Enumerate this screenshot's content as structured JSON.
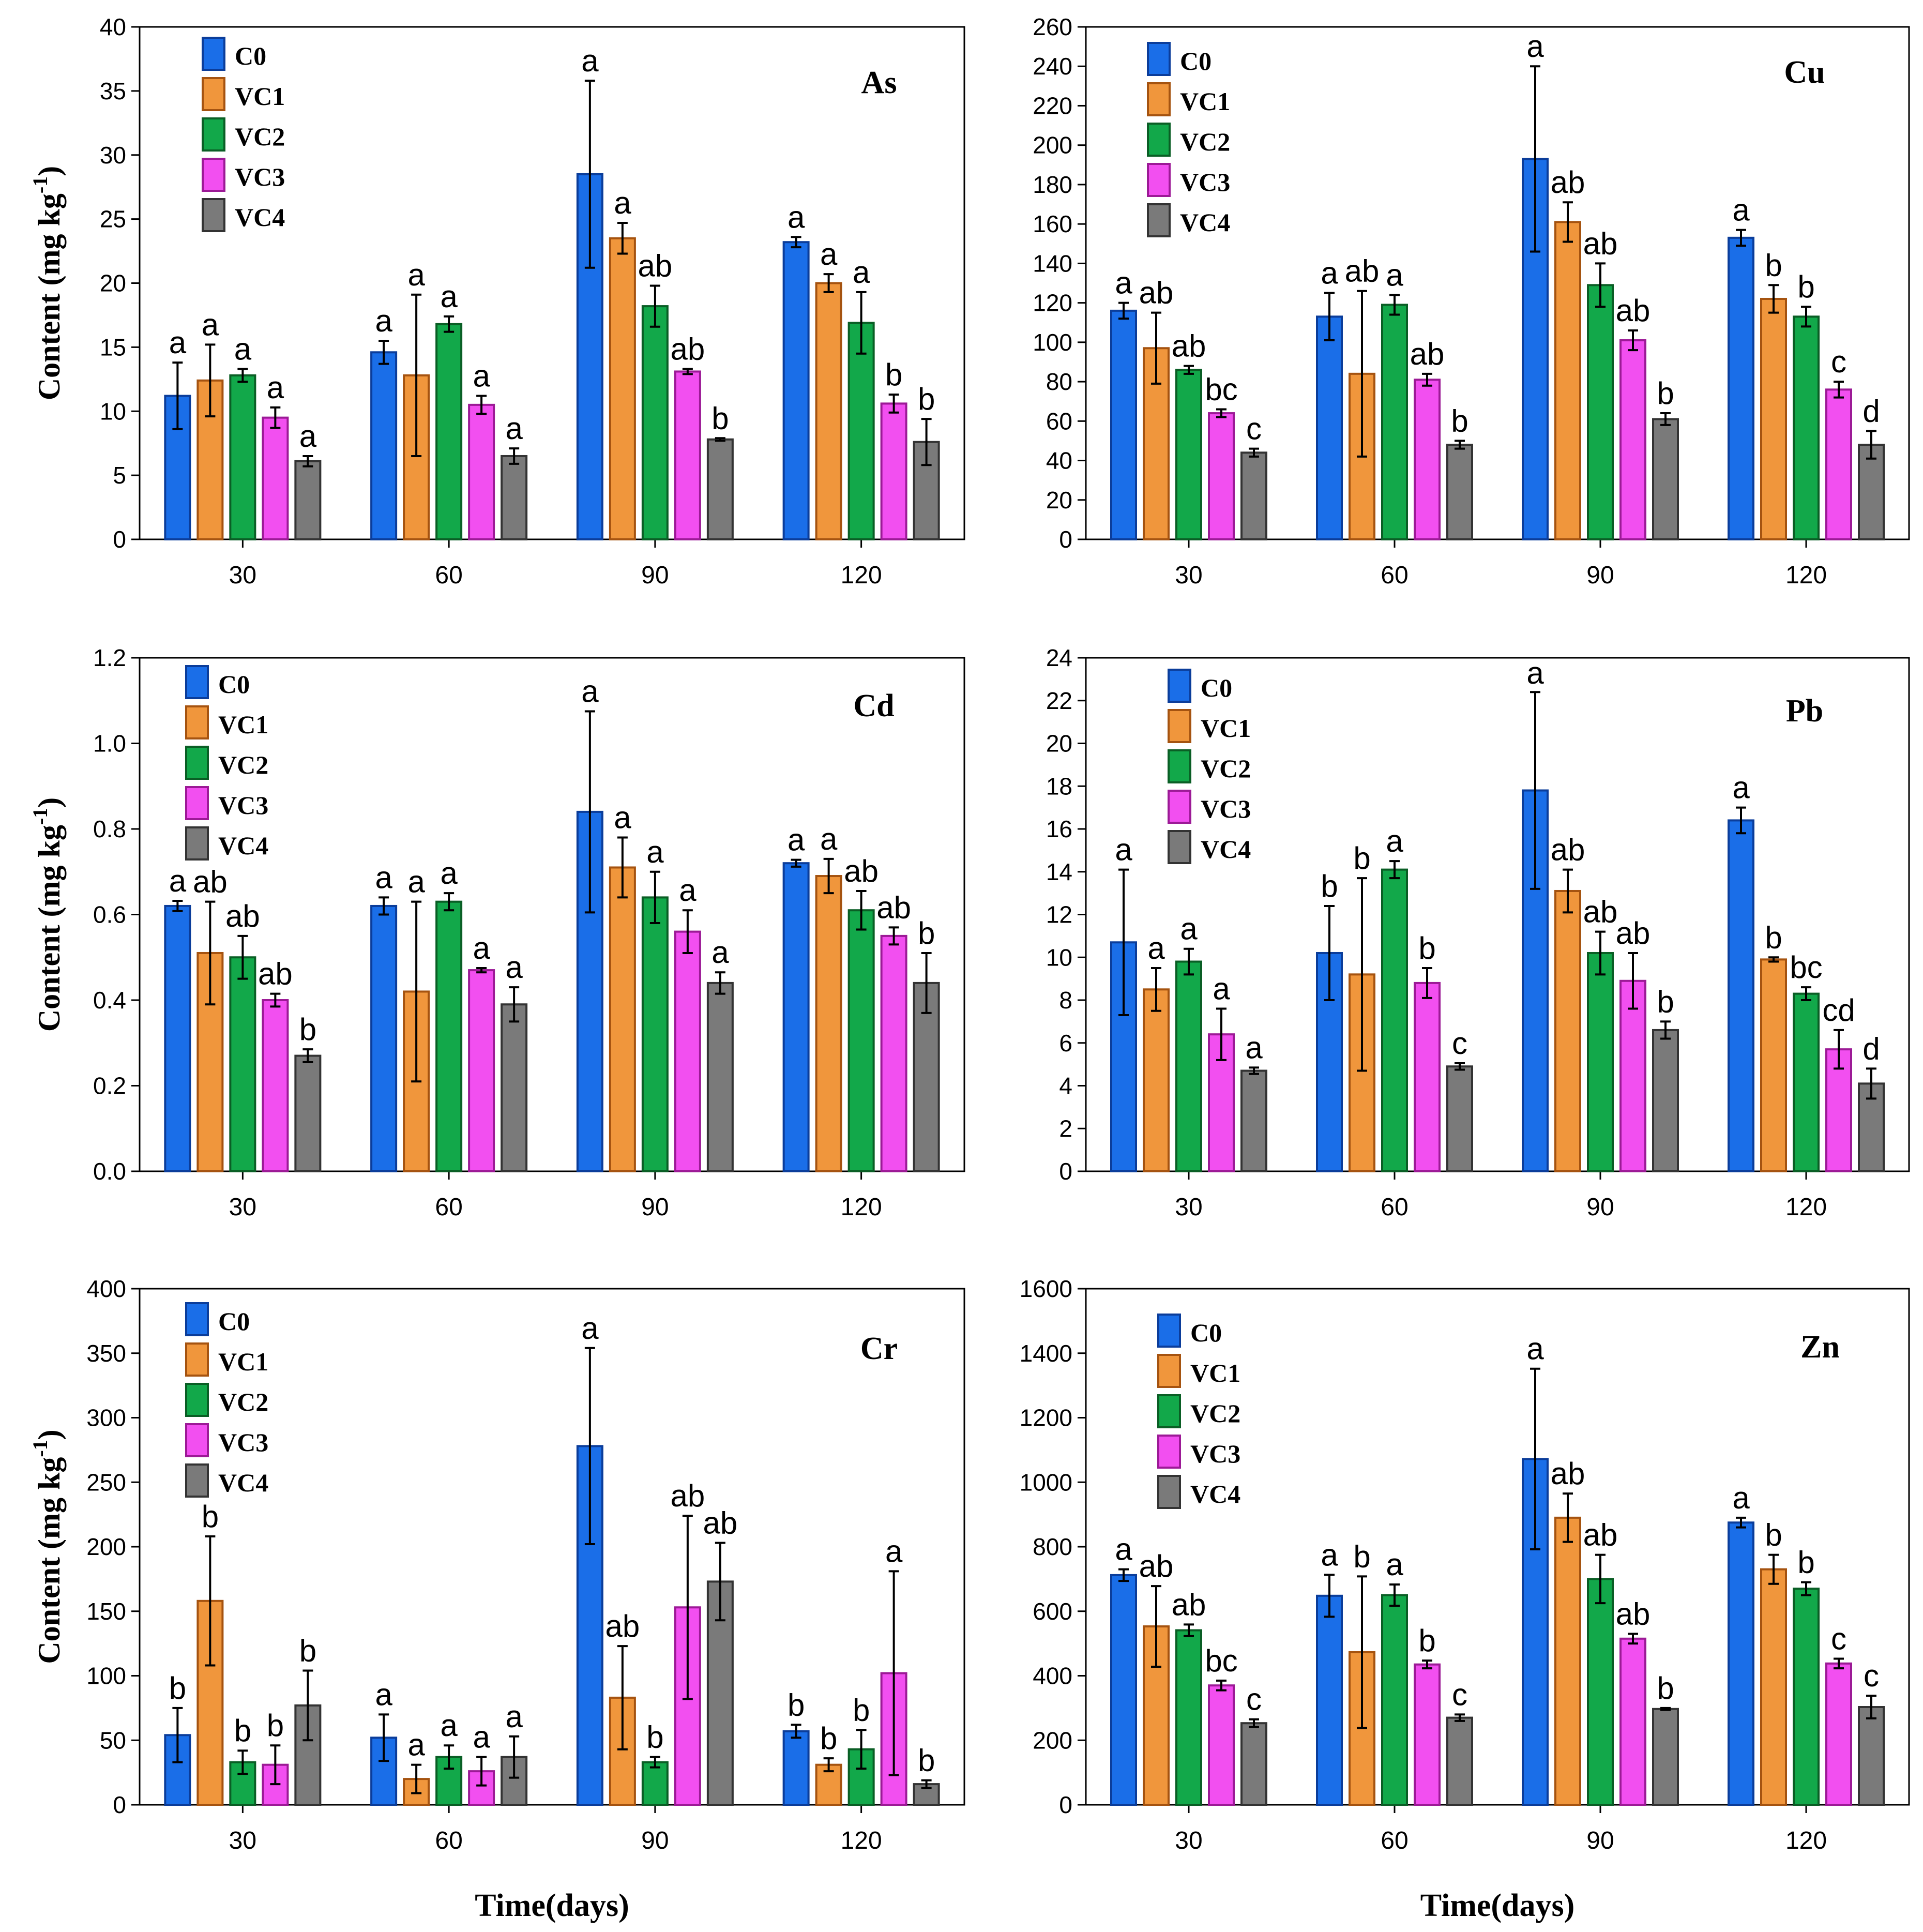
{
  "colors": {
    "C0": "#1a6ee8",
    "VC1": "#f0963c",
    "VC2": "#12a84a",
    "VC3": "#f24ff0",
    "VC4": "#7a7a7a"
  },
  "strokes": {
    "C0": "#0b3d9a",
    "VC1": "#a55310",
    "VC2": "#0a5e25",
    "VC3": "#9c1a96",
    "VC4": "#333333"
  },
  "chart_data": [
    {
      "type": "bar",
      "title": "As",
      "ylabel": "Content (mg kg",
      "ylabel_sup": "-1",
      "ylabel_close": ")",
      "xlabel": "",
      "categories": [
        "30",
        "60",
        "90",
        "120"
      ],
      "ylim": [
        0,
        40
      ],
      "yticks": [
        "0",
        "5",
        "10",
        "15",
        "20",
        "25",
        "30",
        "35",
        "40"
      ],
      "legend": [
        "C0",
        "VC1",
        "VC2",
        "VC3",
        "VC4"
      ],
      "series": [
        {
          "name": "C0",
          "values": [
            11.2,
            14.6,
            28.5,
            23.2
          ],
          "errors": [
            2.6,
            0.9,
            7.3,
            0.4
          ],
          "letters": [
            "a",
            "a",
            "a",
            "a"
          ]
        },
        {
          "name": "VC1",
          "values": [
            12.4,
            12.8,
            23.5,
            20.0
          ],
          "errors": [
            2.8,
            6.3,
            1.2,
            0.7
          ],
          "letters": [
            "a",
            "a",
            "a",
            "a"
          ]
        },
        {
          "name": "VC2",
          "values": [
            12.8,
            16.8,
            18.2,
            16.9
          ],
          "errors": [
            0.5,
            0.6,
            1.6,
            2.4
          ],
          "letters": [
            "a",
            "a",
            "ab",
            "a"
          ]
        },
        {
          "name": "VC3",
          "values": [
            9.5,
            10.5,
            13.1,
            10.6
          ],
          "errors": [
            0.8,
            0.7,
            0.2,
            0.7
          ],
          "letters": [
            "a",
            "a",
            "ab",
            "b"
          ]
        },
        {
          "name": "VC4",
          "values": [
            6.1,
            6.5,
            7.8,
            7.6
          ],
          "errors": [
            0.4,
            0.6,
            0.1,
            1.8
          ],
          "letters": [
            "a",
            "a",
            "b",
            "b"
          ]
        }
      ]
    },
    {
      "type": "bar",
      "title": "Cu",
      "ylabel": "",
      "ylabel_sup": "",
      "ylabel_close": "",
      "xlabel": "",
      "categories": [
        "30",
        "60",
        "90",
        "120"
      ],
      "ylim": [
        0,
        260
      ],
      "yticks": [
        "0",
        "20",
        "40",
        "60",
        "80",
        "100",
        "120",
        "140",
        "160",
        "180",
        "200",
        "220",
        "240",
        "260"
      ],
      "legend": [
        "C0",
        "VC1",
        "VC2",
        "VC3",
        "VC4"
      ],
      "series": [
        {
          "name": "C0",
          "values": [
            116,
            113,
            193,
            153
          ],
          "errors": [
            4,
            12,
            47,
            4
          ],
          "letters": [
            "a",
            "a",
            "a",
            "a"
          ]
        },
        {
          "name": "VC1",
          "values": [
            97,
            84,
            161,
            122
          ],
          "errors": [
            18,
            42,
            10,
            7
          ],
          "letters": [
            "ab",
            "ab",
            "ab",
            "b"
          ]
        },
        {
          "name": "VC2",
          "values": [
            86,
            119,
            129,
            113
          ],
          "errors": [
            2,
            5,
            11,
            5
          ],
          "letters": [
            "ab",
            "a",
            "ab",
            "b"
          ]
        },
        {
          "name": "VC3",
          "values": [
            64,
            81,
            101,
            76
          ],
          "errors": [
            2,
            3,
            5,
            4
          ],
          "letters": [
            "bc",
            "ab",
            "ab",
            "c"
          ]
        },
        {
          "name": "VC4",
          "values": [
            44,
            48,
            61,
            48
          ],
          "errors": [
            2,
            2,
            3,
            7
          ],
          "letters": [
            "c",
            "b",
            "b",
            "d"
          ]
        }
      ]
    },
    {
      "type": "bar",
      "title": "Cd",
      "ylabel": "Content (mg kg",
      "ylabel_sup": "-1",
      "ylabel_close": ")",
      "xlabel": "",
      "categories": [
        "30",
        "60",
        "90",
        "120"
      ],
      "ylim": [
        0,
        1.2
      ],
      "yticks": [
        "0.0",
        "0.2",
        "0.4",
        "0.6",
        "0.8",
        "1.0",
        "1.2"
      ],
      "legend": [
        "C0",
        "VC1",
        "VC2",
        "VC3",
        "VC4"
      ],
      "series": [
        {
          "name": "C0",
          "values": [
            0.62,
            0.62,
            0.84,
            0.72
          ],
          "errors": [
            0.012,
            0.02,
            0.235,
            0.008
          ],
          "letters": [
            "a",
            "a",
            "a",
            "a"
          ]
        },
        {
          "name": "VC1",
          "values": [
            0.51,
            0.42,
            0.71,
            0.69
          ],
          "errors": [
            0.12,
            0.21,
            0.07,
            0.04
          ],
          "letters": [
            "ab",
            "a",
            "a",
            "a"
          ]
        },
        {
          "name": "VC2",
          "values": [
            0.5,
            0.63,
            0.64,
            0.61
          ],
          "errors": [
            0.05,
            0.02,
            0.06,
            0.045
          ],
          "letters": [
            "ab",
            "a",
            "a",
            "ab"
          ]
        },
        {
          "name": "VC3",
          "values": [
            0.4,
            0.47,
            0.56,
            0.55
          ],
          "errors": [
            0.015,
            0.005,
            0.05,
            0.02
          ],
          "letters": [
            "ab",
            "a",
            "a",
            "ab"
          ]
        },
        {
          "name": "VC4",
          "values": [
            0.27,
            0.39,
            0.44,
            0.44
          ],
          "errors": [
            0.015,
            0.04,
            0.025,
            0.07
          ],
          "letters": [
            "b",
            "a",
            "a",
            "b"
          ]
        }
      ]
    },
    {
      "type": "bar",
      "title": "Pb",
      "ylabel": "",
      "ylabel_sup": "",
      "ylabel_close": "",
      "xlabel": "",
      "categories": [
        "30",
        "60",
        "90",
        "120"
      ],
      "ylim": [
        0,
        24
      ],
      "yticks": [
        "0",
        "2",
        "4",
        "6",
        "8",
        "10",
        "12",
        "14",
        "16",
        "18",
        "20",
        "22",
        "24"
      ],
      "legend": [
        "C0",
        "VC1",
        "VC2",
        "VC3",
        "VC4"
      ],
      "series": [
        {
          "name": "C0",
          "values": [
            10.7,
            10.2,
            17.8,
            16.4
          ],
          "errors": [
            3.4,
            2.2,
            4.6,
            0.6
          ],
          "letters": [
            "a",
            "b",
            "a",
            "a"
          ]
        },
        {
          "name": "VC1",
          "values": [
            8.5,
            9.2,
            13.1,
            9.9
          ],
          "errors": [
            1.0,
            4.5,
            1.0,
            0.1
          ],
          "letters": [
            "a",
            "b",
            "ab",
            "b"
          ]
        },
        {
          "name": "VC2",
          "values": [
            9.8,
            14.1,
            10.2,
            8.3
          ],
          "errors": [
            0.6,
            0.4,
            1.0,
            0.3
          ],
          "letters": [
            "a",
            "a",
            "ab",
            "bc"
          ]
        },
        {
          "name": "VC3",
          "values": [
            6.4,
            8.8,
            8.9,
            5.7
          ],
          "errors": [
            1.2,
            0.7,
            1.3,
            0.9
          ],
          "letters": [
            "a",
            "b",
            "ab",
            "cd"
          ]
        },
        {
          "name": "VC4",
          "values": [
            4.7,
            4.9,
            6.6,
            4.1
          ],
          "errors": [
            0.15,
            0.15,
            0.4,
            0.7
          ],
          "letters": [
            "a",
            "c",
            "b",
            "d"
          ]
        }
      ]
    },
    {
      "type": "bar",
      "title": "Cr",
      "ylabel": "Content (mg kg",
      "ylabel_sup": "-1",
      "ylabel_close": ")",
      "xlabel": "Time(days)",
      "categories": [
        "30",
        "60",
        "90",
        "120"
      ],
      "ylim": [
        0,
        400
      ],
      "yticks": [
        "0",
        "50",
        "100",
        "150",
        "200",
        "250",
        "300",
        "350",
        "400"
      ],
      "legend": [
        "C0",
        "VC1",
        "VC2",
        "VC3",
        "VC4"
      ],
      "series": [
        {
          "name": "C0",
          "values": [
            54,
            52,
            278,
            57
          ],
          "errors": [
            21,
            18,
            76,
            5
          ],
          "letters": [
            "b",
            "a",
            "a",
            "b"
          ]
        },
        {
          "name": "VC1",
          "values": [
            158,
            20,
            83,
            31
          ],
          "errors": [
            50,
            11,
            40,
            5
          ],
          "letters": [
            "b",
            "a",
            "ab",
            "b"
          ]
        },
        {
          "name": "VC2",
          "values": [
            33,
            37,
            33,
            43
          ],
          "errors": [
            9,
            9,
            4,
            15
          ],
          "letters": [
            "b",
            "a",
            "b",
            "b"
          ]
        },
        {
          "name": "VC3",
          "values": [
            31,
            26,
            153,
            102
          ],
          "errors": [
            15,
            11,
            71,
            79
          ],
          "letters": [
            "b",
            "a",
            "ab",
            "a"
          ]
        },
        {
          "name": "VC4",
          "values": [
            77,
            37,
            173,
            16
          ],
          "errors": [
            27,
            16,
            30,
            3
          ],
          "letters": [
            "b",
            "a",
            "ab",
            "b"
          ]
        }
      ]
    },
    {
      "type": "bar",
      "title": "Zn",
      "ylabel": "",
      "ylabel_sup": "",
      "ylabel_close": "",
      "xlabel": "Time(days)",
      "categories": [
        "30",
        "60",
        "90",
        "120"
      ],
      "ylim": [
        0,
        1600
      ],
      "yticks": [
        "0",
        "200",
        "400",
        "600",
        "800",
        "1000",
        "1200",
        "1400",
        "1600"
      ],
      "legend": [
        "C0",
        "VC1",
        "VC2",
        "VC3",
        "VC4"
      ],
      "series": [
        {
          "name": "C0",
          "values": [
            712,
            648,
            1072,
            875
          ],
          "errors": [
            18,
            65,
            280,
            15
          ],
          "letters": [
            "a",
            "a",
            "a",
            "a"
          ]
        },
        {
          "name": "VC1",
          "values": [
            553,
            473,
            890,
            730
          ],
          "errors": [
            125,
            235,
            75,
            45
          ],
          "letters": [
            "ab",
            "b",
            "ab",
            "b"
          ]
        },
        {
          "name": "VC2",
          "values": [
            541,
            650,
            700,
            670
          ],
          "errors": [
            18,
            33,
            75,
            20
          ],
          "letters": [
            "ab",
            "a",
            "ab",
            "b"
          ]
        },
        {
          "name": "VC3",
          "values": [
            370,
            435,
            515,
            438
          ],
          "errors": [
            15,
            12,
            15,
            15
          ],
          "letters": [
            "bc",
            "b",
            "ab",
            "c"
          ]
        },
        {
          "name": "VC4",
          "values": [
            253,
            270,
            297,
            303
          ],
          "errors": [
            12,
            10,
            3,
            35
          ],
          "letters": [
            "c",
            "c",
            "b",
            "c"
          ]
        }
      ]
    }
  ]
}
